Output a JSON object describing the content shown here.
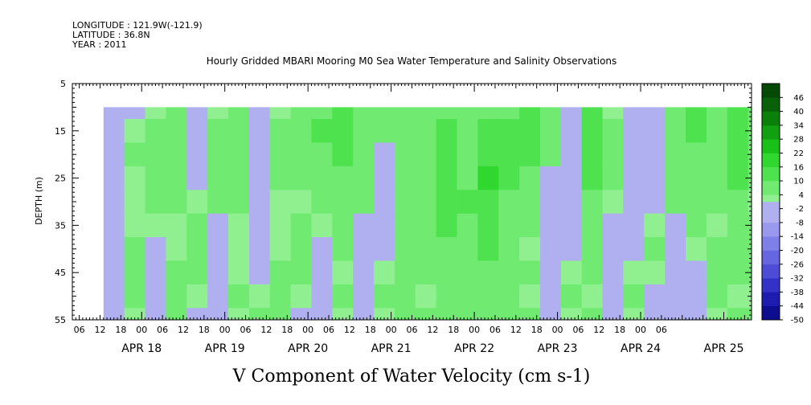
{
  "header": {
    "longitude": "LONGITUDE : 121.9W(-121.9)",
    "latitude": "LATITUDE : 36.8N",
    "year": "YEAR : 2011",
    "title": "Hourly Gridded MBARI Mooring M0 Sea Water Temperature and Salinity Observations"
  },
  "caption": "V Component of Water Velocity (cm s-1)",
  "chart_data": {
    "type": "heatmap",
    "title": "Hourly Gridded MBARI Mooring M0 Sea Water Temperature and Salinity Observations",
    "xlabel": "",
    "ylabel": "DEPTH (m)",
    "y_ticks": [
      "5",
      "15",
      "25",
      "35",
      "45",
      "55"
    ],
    "ylim": [
      5,
      55
    ],
    "y_reversed": true,
    "x_hour_labels": [
      "06",
      "12",
      "18",
      "00",
      "06",
      "12",
      "18",
      "00",
      "06",
      "12",
      "18",
      "00",
      "06",
      "12",
      "18",
      "00",
      "06",
      "12",
      "18",
      "00",
      "06",
      "12",
      "18",
      "00",
      "06",
      "12",
      "18",
      "00",
      "06"
    ],
    "x_day_labels": [
      "APR 18",
      "APR 19",
      "APR 20",
      "APR 21",
      "APR 22",
      "APR 23",
      "APR 24",
      "APR 25"
    ],
    "xlim": [
      "2011-04-17T04:00",
      "2011-04-25T08:00"
    ],
    "data_start": "2011-04-17T13:00",
    "data_depth_range": [
      10,
      55
    ],
    "colorbar": {
      "levels": [
        "46",
        "40",
        "34",
        "28",
        "22",
        "16",
        "10",
        "4",
        "-2",
        "-8",
        "-14",
        "-20",
        "-26",
        "-32",
        "-38",
        "-44",
        "-50"
      ],
      "range": [
        -50,
        52
      ]
    },
    "colors": {
      "positive": [
        "#90f090",
        "#70ea70",
        "#4fe24f",
        "#2fd72f",
        "#18c018",
        "#10a010",
        "#0a800a",
        "#086008",
        "#044a04"
      ],
      "negative": [
        "#b0b0f0",
        "#9898ee",
        "#7f7fea",
        "#6666e0",
        "#4c4cd6",
        "#3232c8",
        "#1c1cb0",
        "#0d0d90",
        "#060670"
      ]
    },
    "values_cm_s": {
      "depths_m": [
        10,
        15,
        20,
        25,
        30,
        35,
        40,
        45,
        50,
        55
      ],
      "times": [
        "2011-04-17T13:00",
        "2011-04-17T19:00",
        "2011-04-18T01:00",
        "2011-04-18T07:00",
        "2011-04-18T13:00",
        "2011-04-18T19:00",
        "2011-04-19T01:00",
        "2011-04-19T07:00",
        "2011-04-19T13:00",
        "2011-04-19T19:00",
        "2011-04-20T01:00",
        "2011-04-20T07:00",
        "2011-04-20T13:00",
        "2011-04-20T19:00",
        "2011-04-21T01:00",
        "2011-04-21T07:00",
        "2011-04-21T13:00",
        "2011-04-21T19:00",
        "2011-04-22T01:00",
        "2011-04-22T07:00",
        "2011-04-22T13:00",
        "2011-04-22T19:00",
        "2011-04-23T01:00",
        "2011-04-23T07:00",
        "2011-04-23T13:00",
        "2011-04-23T19:00",
        "2011-04-24T01:00",
        "2011-04-24T07:00",
        "2011-04-24T13:00",
        "2011-04-24T19:00",
        "2011-04-25T01:00",
        "2011-04-25T07:00"
      ],
      "grid": [
        [
          -3,
          -2,
          1,
          4,
          -4,
          3,
          6,
          -3,
          2,
          4,
          8,
          10,
          5,
          6,
          7,
          5,
          9,
          4,
          8,
          7,
          12,
          5,
          -4,
          10,
          3,
          -3,
          -6,
          6,
          14,
          5,
          12,
          8
        ],
        [
          -4,
          2,
          5,
          7,
          -5,
          5,
          8,
          -4,
          4,
          8,
          10,
          12,
          6,
          5,
          8,
          6,
          10,
          6,
          12,
          10,
          13,
          6,
          -3,
          11,
          4,
          -4,
          -5,
          8,
          12,
          4,
          14,
          6
        ],
        [
          -6,
          4,
          6,
          8,
          -3,
          6,
          8,
          -2,
          5,
          6,
          9,
          10,
          6,
          -3,
          8,
          8,
          12,
          8,
          15,
          12,
          10,
          5,
          -4,
          12,
          5,
          -5,
          -4,
          6,
          8,
          6,
          13,
          5
        ],
        [
          -7,
          3,
          5,
          6,
          -2,
          5,
          6,
          -3,
          4,
          4,
          6,
          8,
          5,
          -4,
          6,
          9,
          13,
          9,
          16,
          10,
          8,
          -3,
          -5,
          10,
          4,
          -6,
          -3,
          5,
          6,
          5,
          10,
          4
        ],
        [
          -5,
          2,
          4,
          4,
          3,
          4,
          4,
          -4,
          3,
          3,
          4,
          6,
          4,
          -5,
          5,
          8,
          12,
          10,
          14,
          8,
          5,
          -5,
          -6,
          8,
          3,
          -5,
          -2,
          4,
          5,
          4,
          8,
          3
        ],
        [
          -4,
          3,
          3,
          3,
          4,
          -3,
          3,
          -4,
          2,
          4,
          3,
          5,
          -3,
          -4,
          4,
          6,
          10,
          9,
          12,
          6,
          4,
          -6,
          -4,
          6,
          -3,
          -4,
          3,
          -3,
          4,
          3,
          6,
          4
        ],
        [
          -3,
          4,
          -2,
          3,
          5,
          -4,
          2,
          -3,
          3,
          5,
          -3,
          4,
          -4,
          -3,
          5,
          5,
          8,
          8,
          10,
          5,
          3,
          -5,
          -3,
          5,
          -4,
          -3,
          4,
          -4,
          3,
          4,
          5,
          5
        ],
        [
          -4,
          5,
          -3,
          4,
          4,
          -5,
          3,
          -2,
          4,
          4,
          -4,
          3,
          -3,
          3,
          6,
          4,
          6,
          7,
          8,
          6,
          4,
          -4,
          3,
          4,
          -5,
          3,
          3,
          -5,
          -3,
          5,
          4,
          4
        ],
        [
          -5,
          4,
          -4,
          5,
          3,
          -6,
          4,
          3,
          5,
          3,
          -5,
          4,
          -4,
          4,
          5,
          3,
          5,
          6,
          7,
          5,
          3,
          -3,
          4,
          3,
          -6,
          4,
          -3,
          -4,
          -4,
          4,
          3,
          3
        ],
        [
          -6,
          3,
          -5,
          4,
          -3,
          -5,
          3,
          4,
          4,
          -3,
          -6,
          3,
          -5,
          3,
          4,
          4,
          4,
          5,
          6,
          4,
          4,
          -4,
          3,
          4,
          -7,
          3,
          -4,
          -3,
          -5,
          3,
          4,
          4
        ]
      ]
    }
  }
}
